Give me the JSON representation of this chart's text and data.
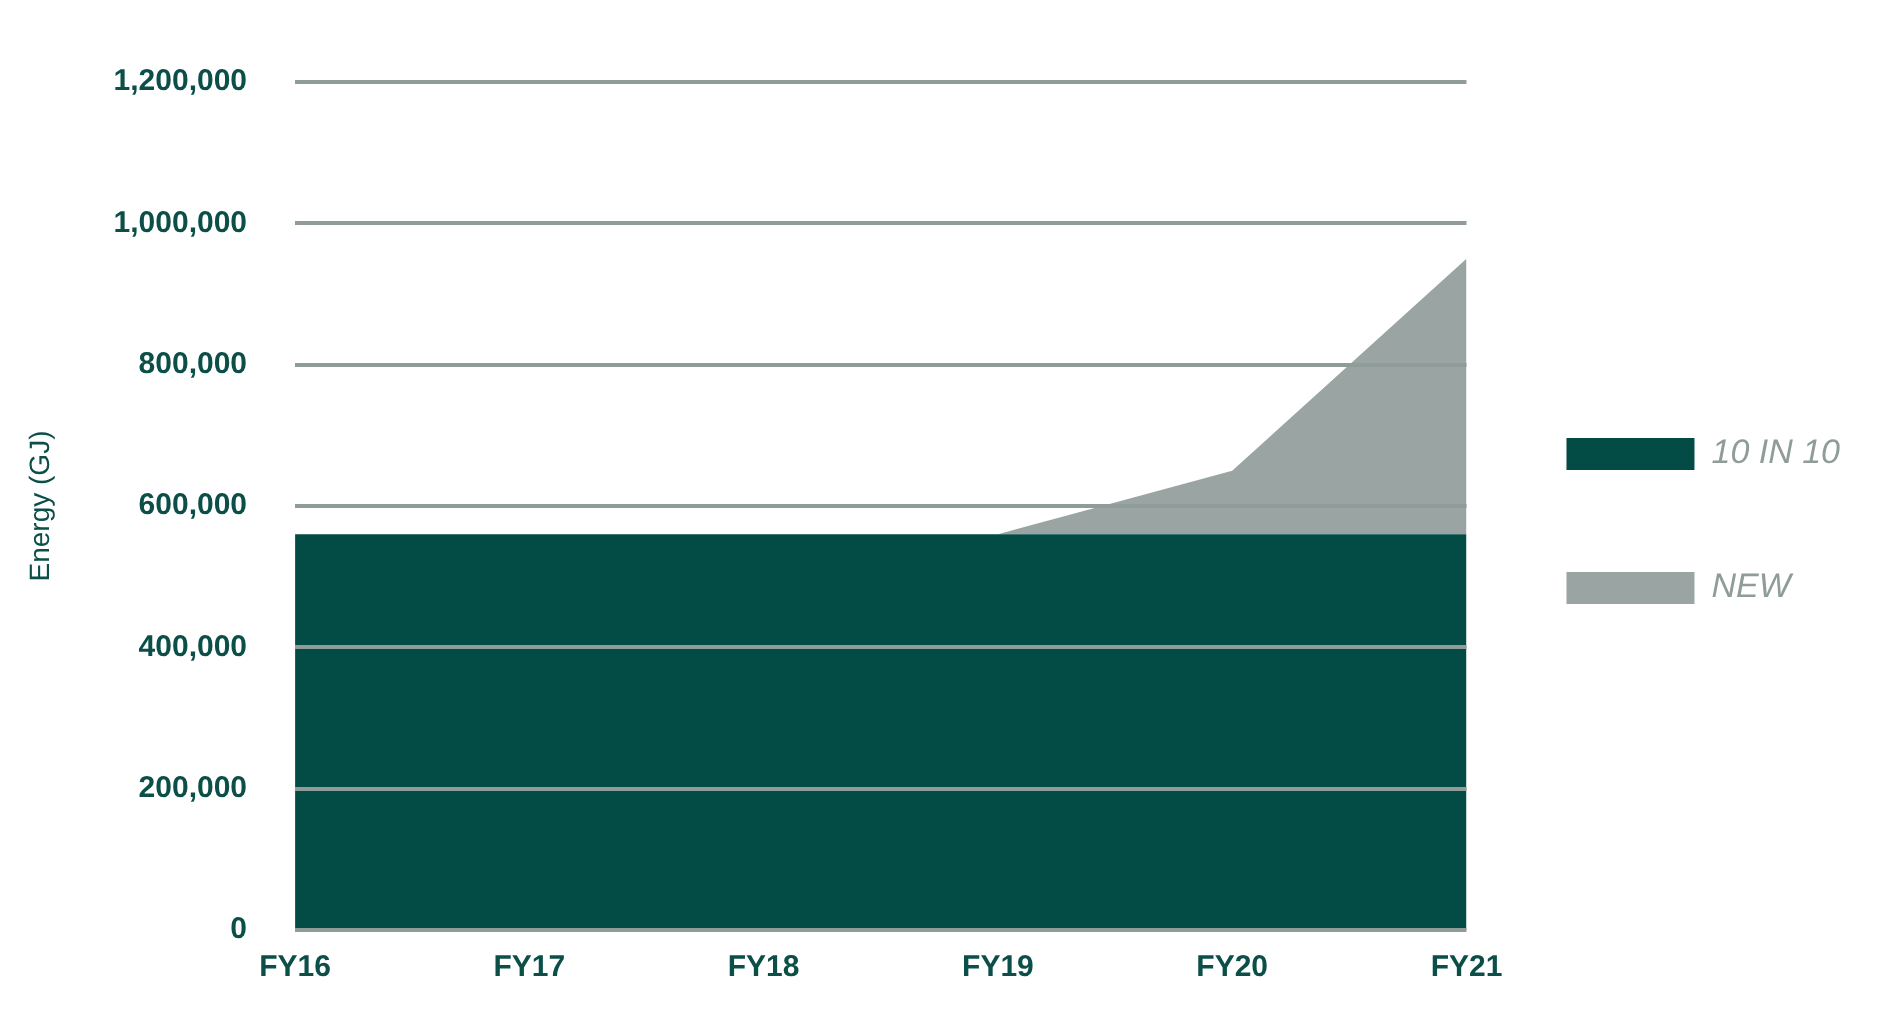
{
  "chart_data": {
    "type": "area",
    "stacked": true,
    "ylabel": "Energy (GJ)",
    "categories": [
      "FY16",
      "FY17",
      "FY18",
      "FY19",
      "FY20",
      "FY21"
    ],
    "series": [
      {
        "name": "10 IN 10",
        "color": "#034c46",
        "values": [
          560000,
          560000,
          560000,
          560000,
          560000,
          560000
        ]
      },
      {
        "name": "NEW",
        "color": "#9aa5a3",
        "values": [
          null,
          null,
          null,
          0,
          90000,
          390000
        ]
      }
    ],
    "ylim": [
      0,
      1200000
    ],
    "yticks": [
      {
        "value": 0,
        "label": "0"
      },
      {
        "value": 200000,
        "label": "200,000"
      },
      {
        "value": 400000,
        "label": "400,000"
      },
      {
        "value": 600000,
        "label": "600,000"
      },
      {
        "value": 800000,
        "label": "800,000"
      },
      {
        "value": 1000000,
        "label": "1,000,000"
      },
      {
        "value": 1200000,
        "label": "1,200,000"
      }
    ],
    "grid": "y",
    "legend": "right"
  }
}
